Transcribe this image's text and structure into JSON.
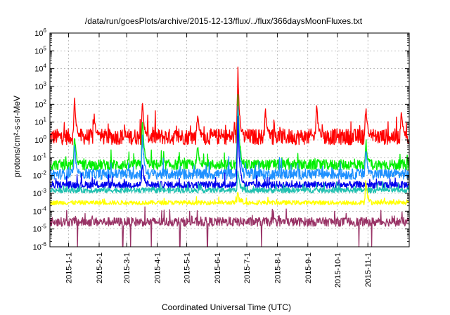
{
  "chart_data": {
    "type": "line",
    "title": "/data/run/goesPlots/archive/2015-12-13/flux/../flux/366daysMoonFluxes.txt",
    "xlabel": "Coordinated Universal Time (UTC)",
    "ylabel": "protons/cm²-s-sr-MeV",
    "yscale": "log",
    "ylim": [
      1e-06,
      1000000.0
    ],
    "xlim": [
      "2014-12-13",
      "2015-12-13"
    ],
    "grid": true,
    "x_ticks": [
      "2015-1-1",
      "2015-2-1",
      "2015-3-1",
      "2015-4-1",
      "2015-5-1",
      "2015-6-1",
      "2015-7-1",
      "2015-8-1",
      "2015-9-1",
      "2015-10-1",
      "2015-11-1"
    ],
    "y_ticks": [
      {
        "base": "10",
        "exp": "-6"
      },
      {
        "base": "10",
        "exp": "-5"
      },
      {
        "base": "10",
        "exp": "-4"
      },
      {
        "base": "10",
        "exp": "-3"
      },
      {
        "base": "10",
        "exp": "-2"
      },
      {
        "base": "10",
        "exp": "-1"
      },
      {
        "base": "10",
        "exp": "0"
      },
      {
        "base": "10",
        "exp": "1"
      },
      {
        "base": "10",
        "exp": "2"
      },
      {
        "base": "10",
        "exp": "3"
      },
      {
        "base": "10",
        "exp": "4"
      },
      {
        "base": "10",
        "exp": "5"
      },
      {
        "base": "10",
        "exp": "6"
      }
    ],
    "series": [
      {
        "color": "#ff0000",
        "baseline": 1.5,
        "noise_decades": 0.45,
        "peaks": [
          {
            "date": "2015-01-07",
            "value": 300
          },
          {
            "date": "2015-01-27",
            "value": 20
          },
          {
            "date": "2015-03-17",
            "value": 150
          },
          {
            "date": "2015-05-12",
            "value": 25
          },
          {
            "date": "2015-06-22",
            "value": 10000
          },
          {
            "date": "2015-07-20",
            "value": 50
          },
          {
            "date": "2015-09-10",
            "value": 120
          },
          {
            "date": "2015-10-30",
            "value": 80
          },
          {
            "date": "2015-12-05",
            "value": 40
          }
        ]
      },
      {
        "color": "#00ee00",
        "baseline": 0.04,
        "noise_decades": 0.3,
        "peaks": [
          {
            "date": "2015-01-07",
            "value": 2
          },
          {
            "date": "2015-03-17",
            "value": 20
          },
          {
            "date": "2015-05-12",
            "value": 0.5
          },
          {
            "date": "2015-06-22",
            "value": 500
          },
          {
            "date": "2015-10-30",
            "value": 1
          }
        ]
      },
      {
        "color": "#1e90ff",
        "baseline": 0.012,
        "noise_decades": 0.3,
        "peaks": [
          {
            "date": "2015-01-07",
            "value": 0.5
          },
          {
            "date": "2015-03-17",
            "value": 2
          },
          {
            "date": "2015-06-22",
            "value": 100
          },
          {
            "date": "2015-10-30",
            "value": 0.3
          }
        ]
      },
      {
        "color": "#0000ee",
        "baseline": 0.003,
        "noise_decades": 0.2,
        "peaks": [
          {
            "date": "2015-03-17",
            "value": 0.05
          },
          {
            "date": "2015-06-22",
            "value": 20
          }
        ]
      },
      {
        "color": "#20c0b0",
        "baseline": 0.0015,
        "noise_decades": 0.15,
        "peaks": [
          {
            "date": "2015-06-22",
            "value": 0.02
          }
        ]
      },
      {
        "color": "#ffff00",
        "baseline": 0.0003,
        "noise_decades": 0.12,
        "peaks": [
          {
            "date": "2015-06-22",
            "value": 0.001
          },
          {
            "date": "2015-10-30",
            "value": 0.005
          }
        ]
      },
      {
        "color": "#993366",
        "baseline": 2.5e-05,
        "noise_decades": 0.25,
        "dips": [
          "2015-01-10",
          "2015-02-25",
          "2015-03-05",
          "2015-03-26",
          "2015-04-24",
          "2015-05-22",
          "2015-07-16",
          "2015-10-23",
          "2015-11-05"
        ],
        "peaks": []
      }
    ]
  }
}
